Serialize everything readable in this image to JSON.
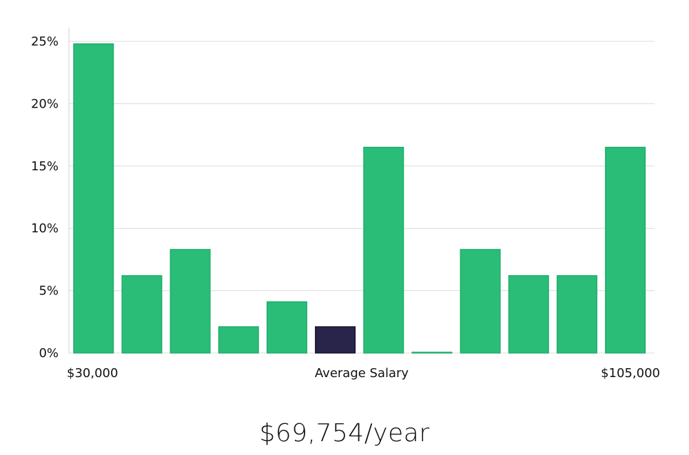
{
  "chart_data": {
    "type": "bar",
    "categories": [
      "1",
      "2",
      "3",
      "4",
      "5",
      "6",
      "7",
      "8",
      "9",
      "10",
      "11",
      "12"
    ],
    "values": [
      24.8,
      6.2,
      8.3,
      2.1,
      4.1,
      2.1,
      16.5,
      0.05,
      8.3,
      6.2,
      6.2,
      16.5
    ],
    "highlight_index": 5,
    "ylim": [
      0,
      25
    ],
    "yticks": [
      "0%",
      "5%",
      "10%",
      "15%",
      "20%",
      "25%"
    ],
    "ytick_values": [
      0,
      5,
      10,
      15,
      20,
      25
    ],
    "x_min_label": "$30,000",
    "x_center_label": "Average Salary",
    "x_max_label": "$105,000",
    "grid": true,
    "colors": {
      "bar": "#2abd78",
      "bar_edge": "#1fae6a",
      "highlight": "#29244a",
      "highlight_edge": "#16132e"
    }
  },
  "salary_display": "$69,754/year"
}
